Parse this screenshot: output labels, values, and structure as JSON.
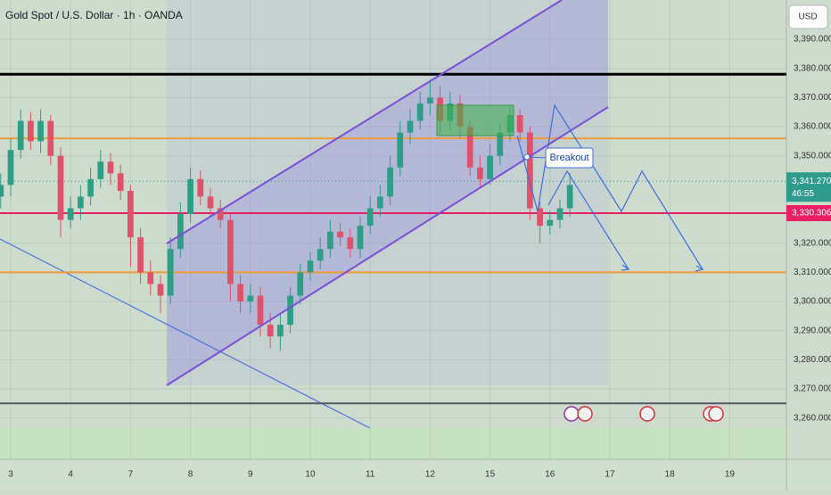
{
  "chart_data": {
    "type": "candlestick",
    "title": "Gold Spot / U.S. Dollar · 1h · OANDA",
    "currency": "USD",
    "annotation": "Breakout",
    "countdown": "46:55",
    "last_price": {
      "value": 3341.27,
      "label": "3,341.270"
    },
    "marked_price": {
      "value": 3330.306,
      "label": "3,330.306"
    },
    "ylim": [
      3245.8,
      3403.5
    ],
    "yticks": [
      {
        "value": 3390,
        "label": "3,390.000"
      },
      {
        "value": 3380,
        "label": "3,380.000"
      },
      {
        "value": 3370,
        "label": "3,370.000"
      },
      {
        "value": 3360,
        "label": "3,360.000"
      },
      {
        "value": 3350,
        "label": "3,350.000"
      },
      {
        "value": 3320,
        "label": "3,320.000"
      },
      {
        "value": 3310,
        "label": "3,310.000"
      },
      {
        "value": 3300,
        "label": "3,300.000"
      },
      {
        "value": 3290,
        "label": "3,290.000"
      },
      {
        "value": 3280,
        "label": "3,280.000"
      },
      {
        "value": 3270,
        "label": "3,270.000"
      },
      {
        "value": 3260,
        "label": "3,260.000"
      }
    ],
    "xlim": [
      -0.07,
      78.68
    ],
    "xticks": [
      {
        "value": 1,
        "label": "3"
      },
      {
        "value": 7,
        "label": "4"
      },
      {
        "value": 13,
        "label": "7"
      },
      {
        "value": 19,
        "label": "8"
      },
      {
        "value": 25,
        "label": "9"
      },
      {
        "value": 31,
        "label": "10"
      },
      {
        "value": 37,
        "label": "11"
      },
      {
        "value": 43,
        "label": "12"
      },
      {
        "value": 49,
        "label": "15"
      },
      {
        "value": 55,
        "label": "16"
      },
      {
        "value": 61,
        "label": "17"
      },
      {
        "value": 67,
        "label": "18"
      },
      {
        "value": 73,
        "label": "19"
      }
    ],
    "grid": true,
    "up_color": "#2f9e86",
    "down_color": "#e0526a",
    "levels": [
      {
        "value": 3378,
        "color": "#000000"
      },
      {
        "value": 3356,
        "color": "#f29a3a"
      },
      {
        "value": 3310,
        "color": "#f29a3a"
      },
      {
        "value": 3265,
        "color": "#555a66"
      }
    ],
    "open": [
      3336,
      3340,
      3352,
      3362,
      3355,
      3362,
      3350,
      3328,
      3332,
      3336,
      3342,
      3348,
      3344,
      3338,
      3322,
      3310,
      3306,
      3302,
      3318,
      3330,
      3342,
      3336,
      3332,
      3328,
      3306,
      3300,
      3302,
      3292,
      3288,
      3292,
      3302,
      3310,
      3314,
      3318,
      3324,
      3322,
      3318,
      3326,
      3332,
      3336,
      3346,
      3358,
      3362,
      3368,
      3370,
      3362,
      3368,
      3360,
      3346,
      3342,
      3350,
      3358,
      3364,
      3358,
      3332,
      3326,
      3328,
      3332
    ],
    "high": [
      3344,
      3356,
      3366,
      3365,
      3366,
      3364,
      3353,
      3336,
      3340,
      3346,
      3352,
      3351,
      3347,
      3340,
      3325,
      3314,
      3309,
      3322,
      3334,
      3346,
      3345,
      3339,
      3335,
      3330,
      3309,
      3306,
      3305,
      3296,
      3296,
      3305,
      3313,
      3317,
      3322,
      3328,
      3327,
      3325,
      3329,
      3336,
      3340,
      3350,
      3362,
      3366,
      3372,
      3376,
      3374,
      3372,
      3371,
      3362,
      3350,
      3354,
      3361,
      3367,
      3366,
      3360,
      3334,
      3331,
      3335,
      3344
    ],
    "low": [
      3332,
      3336,
      3349,
      3352,
      3351,
      3347,
      3322,
      3325,
      3328,
      3333,
      3339,
      3340,
      3335,
      3312,
      3306,
      3302,
      3296,
      3299,
      3315,
      3327,
      3333,
      3329,
      3325,
      3300,
      3296,
      3296,
      3288,
      3284,
      3283,
      3289,
      3299,
      3307,
      3311,
      3315,
      3319,
      3315,
      3315,
      3323,
      3329,
      3333,
      3343,
      3354,
      3359,
      3364,
      3358,
      3359,
      3356,
      3343,
      3339,
      3340,
      3347,
      3355,
      3355,
      3328,
      3320,
      3323,
      3325,
      3329
    ],
    "close": [
      3340,
      3352,
      3362,
      3355,
      3362,
      3350,
      3328,
      3332,
      3336,
      3342,
      3348,
      3344,
      3338,
      3322,
      3310,
      3306,
      3302,
      3318,
      3330,
      3342,
      3336,
      3332,
      3328,
      3306,
      3300,
      3302,
      3292,
      3288,
      3292,
      3302,
      3310,
      3314,
      3318,
      3324,
      3322,
      3318,
      3326,
      3332,
      3336,
      3346,
      3358,
      3362,
      3368,
      3370,
      3362,
      3368,
      3360,
      3346,
      3342,
      3350,
      3358,
      3364,
      3358,
      3332,
      3326,
      3328,
      3332,
      3340
    ]
  }
}
